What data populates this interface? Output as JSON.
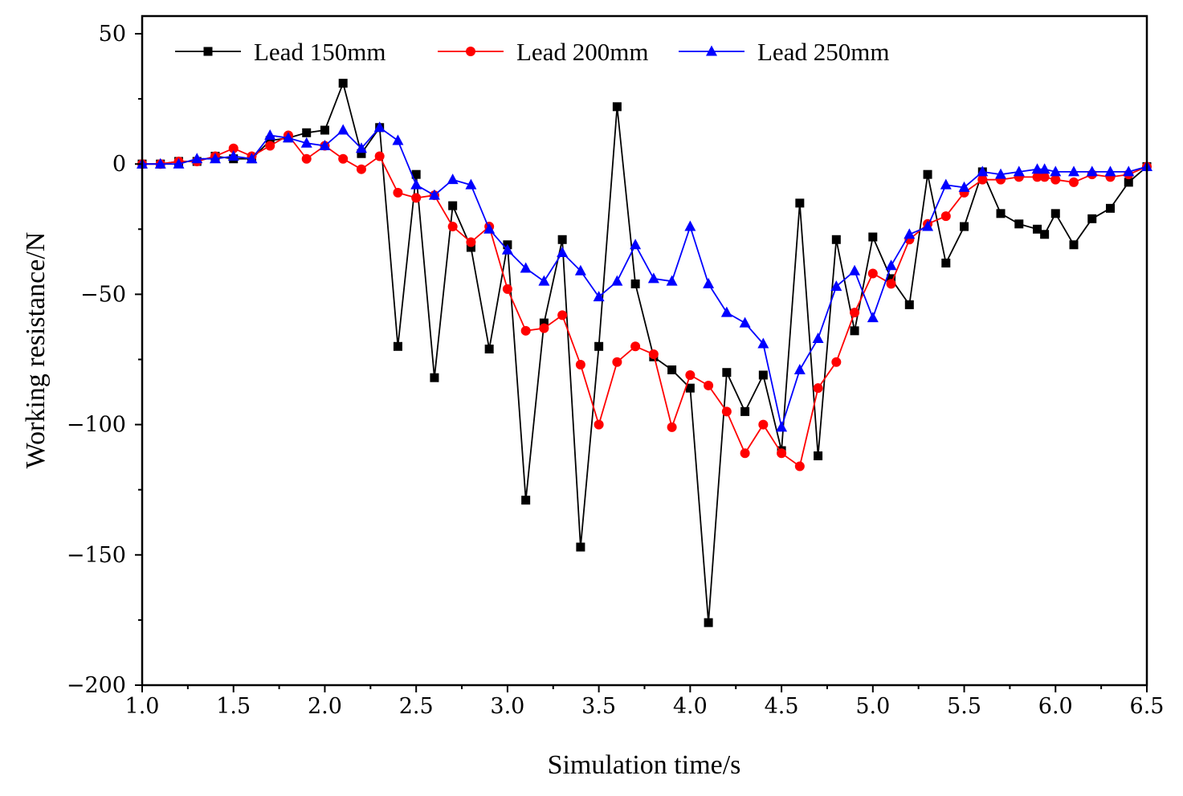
{
  "chart_data": {
    "type": "line",
    "title": "",
    "xlabel": "Simulation time/s",
    "ylabel": "Working resistance/N",
    "xlim": [
      1.0,
      6.5
    ],
    "ylim": [
      -200,
      50
    ],
    "x_ticks": [
      1.0,
      1.5,
      2.0,
      2.5,
      3.0,
      3.5,
      4.0,
      4.5,
      5.0,
      5.5,
      6.0,
      6.5
    ],
    "x_tick_labels": [
      "1.0",
      "1.5",
      "2.0",
      "2.5",
      "3.0",
      "3.5",
      "4.0",
      "4.5",
      "5.0",
      "5.5",
      "6.0",
      "6.5"
    ],
    "y_ticks": [
      50,
      0,
      -50,
      -100,
      -150,
      -200
    ],
    "y_tick_labels": [
      "50",
      "0",
      "−50",
      "−100",
      "−150",
      "−200"
    ],
    "grid": false,
    "legend_position": "top-left",
    "series": [
      {
        "name": "Lead 150mm",
        "color": "#000000",
        "marker": "square",
        "points": [
          [
            1.0,
            0
          ],
          [
            1.1,
            0
          ],
          [
            1.2,
            1
          ],
          [
            1.3,
            1
          ],
          [
            1.4,
            3
          ],
          [
            1.5,
            2
          ],
          [
            1.6,
            2
          ],
          [
            1.7,
            9
          ],
          [
            1.8,
            10
          ],
          [
            1.9,
            12
          ],
          [
            2.0,
            13
          ],
          [
            2.1,
            31
          ],
          [
            2.2,
            4
          ],
          [
            2.3,
            14
          ],
          [
            2.4,
            -70
          ],
          [
            2.5,
            -4
          ],
          [
            2.6,
            -82
          ],
          [
            2.7,
            -16
          ],
          [
            2.8,
            -32
          ],
          [
            2.9,
            -71
          ],
          [
            3.0,
            -31
          ],
          [
            3.1,
            -129
          ],
          [
            3.2,
            -61
          ],
          [
            3.3,
            -29
          ],
          [
            3.4,
            -147
          ],
          [
            3.5,
            -70
          ],
          [
            3.6,
            22
          ],
          [
            3.7,
            -46
          ],
          [
            3.8,
            -74
          ],
          [
            3.9,
            -79
          ],
          [
            4.0,
            -86
          ],
          [
            4.1,
            -176
          ],
          [
            4.2,
            -80
          ],
          [
            4.3,
            -95
          ],
          [
            4.4,
            -81
          ],
          [
            4.5,
            -110
          ],
          [
            4.6,
            -15
          ],
          [
            4.7,
            -112
          ],
          [
            4.8,
            -29
          ],
          [
            4.9,
            -64
          ],
          [
            5.0,
            -28
          ],
          [
            5.1,
            -44
          ],
          [
            5.2,
            -54
          ],
          [
            5.3,
            -4
          ],
          [
            5.4,
            -38
          ],
          [
            5.5,
            -24
          ],
          [
            5.6,
            -3
          ],
          [
            5.7,
            -19
          ],
          [
            5.8,
            -23
          ],
          [
            5.9,
            -25
          ],
          [
            5.94,
            -27
          ],
          [
            6.0,
            -19
          ],
          [
            6.1,
            -31
          ],
          [
            6.2,
            -21
          ],
          [
            6.3,
            -17
          ],
          [
            6.4,
            -7
          ],
          [
            6.5,
            -1
          ]
        ]
      },
      {
        "name": "Lead 200mm",
        "color": "#ff0000",
        "marker": "circle",
        "points": [
          [
            1.0,
            0
          ],
          [
            1.1,
            0
          ],
          [
            1.2,
            1
          ],
          [
            1.3,
            1
          ],
          [
            1.4,
            3
          ],
          [
            1.5,
            6
          ],
          [
            1.6,
            3
          ],
          [
            1.7,
            7
          ],
          [
            1.8,
            11
          ],
          [
            1.9,
            2
          ],
          [
            2.0,
            7
          ],
          [
            2.1,
            2
          ],
          [
            2.2,
            -2
          ],
          [
            2.3,
            3
          ],
          [
            2.4,
            -11
          ],
          [
            2.5,
            -13
          ],
          [
            2.6,
            -12
          ],
          [
            2.7,
            -24
          ],
          [
            2.8,
            -30
          ],
          [
            2.9,
            -24
          ],
          [
            3.0,
            -48
          ],
          [
            3.1,
            -64
          ],
          [
            3.2,
            -63
          ],
          [
            3.3,
            -58
          ],
          [
            3.4,
            -77
          ],
          [
            3.5,
            -100
          ],
          [
            3.6,
            -76
          ],
          [
            3.7,
            -70
          ],
          [
            3.8,
            -73
          ],
          [
            3.9,
            -101
          ],
          [
            4.0,
            -81
          ],
          [
            4.1,
            -85
          ],
          [
            4.2,
            -95
          ],
          [
            4.3,
            -111
          ],
          [
            4.4,
            -100
          ],
          [
            4.5,
            -111
          ],
          [
            4.6,
            -116
          ],
          [
            4.7,
            -86
          ],
          [
            4.8,
            -76
          ],
          [
            4.9,
            -57
          ],
          [
            5.0,
            -42
          ],
          [
            5.1,
            -46
          ],
          [
            5.2,
            -29
          ],
          [
            5.3,
            -23
          ],
          [
            5.4,
            -20
          ],
          [
            5.5,
            -11
          ],
          [
            5.6,
            -6
          ],
          [
            5.7,
            -6
          ],
          [
            5.8,
            -5
          ],
          [
            5.9,
            -5
          ],
          [
            5.94,
            -5
          ],
          [
            6.0,
            -6
          ],
          [
            6.1,
            -7
          ],
          [
            6.2,
            -4
          ],
          [
            6.3,
            -5
          ],
          [
            6.4,
            -4
          ],
          [
            6.5,
            -1
          ]
        ]
      },
      {
        "name": "Lead 250mm",
        "color": "#0000ff",
        "marker": "triangle",
        "points": [
          [
            1.0,
            0
          ],
          [
            1.1,
            0
          ],
          [
            1.2,
            0
          ],
          [
            1.3,
            2
          ],
          [
            1.4,
            2
          ],
          [
            1.5,
            3
          ],
          [
            1.6,
            2
          ],
          [
            1.7,
            11
          ],
          [
            1.8,
            10
          ],
          [
            1.9,
            8
          ],
          [
            2.0,
            7
          ],
          [
            2.1,
            13
          ],
          [
            2.2,
            6
          ],
          [
            2.3,
            14
          ],
          [
            2.4,
            9
          ],
          [
            2.5,
            -8
          ],
          [
            2.6,
            -12
          ],
          [
            2.7,
            -6
          ],
          [
            2.8,
            -8
          ],
          [
            2.9,
            -25
          ],
          [
            3.0,
            -33
          ],
          [
            3.1,
            -40
          ],
          [
            3.2,
            -45
          ],
          [
            3.3,
            -34
          ],
          [
            3.4,
            -41
          ],
          [
            3.5,
            -51
          ],
          [
            3.6,
            -45
          ],
          [
            3.7,
            -31
          ],
          [
            3.8,
            -44
          ],
          [
            3.9,
            -45
          ],
          [
            4.0,
            -24
          ],
          [
            4.1,
            -46
          ],
          [
            4.2,
            -57
          ],
          [
            4.3,
            -61
          ],
          [
            4.4,
            -69
          ],
          [
            4.5,
            -101
          ],
          [
            4.6,
            -79
          ],
          [
            4.7,
            -67
          ],
          [
            4.8,
            -47
          ],
          [
            4.9,
            -41
          ],
          [
            5.0,
            -59
          ],
          [
            5.1,
            -39
          ],
          [
            5.2,
            -27
          ],
          [
            5.3,
            -24
          ],
          [
            5.4,
            -8
          ],
          [
            5.5,
            -9
          ],
          [
            5.6,
            -3
          ],
          [
            5.7,
            -4
          ],
          [
            5.8,
            -3
          ],
          [
            5.9,
            -2
          ],
          [
            5.94,
            -2
          ],
          [
            6.0,
            -3
          ],
          [
            6.1,
            -3
          ],
          [
            6.2,
            -3
          ],
          [
            6.3,
            -3
          ],
          [
            6.4,
            -3
          ],
          [
            6.5,
            -1
          ]
        ]
      }
    ]
  }
}
